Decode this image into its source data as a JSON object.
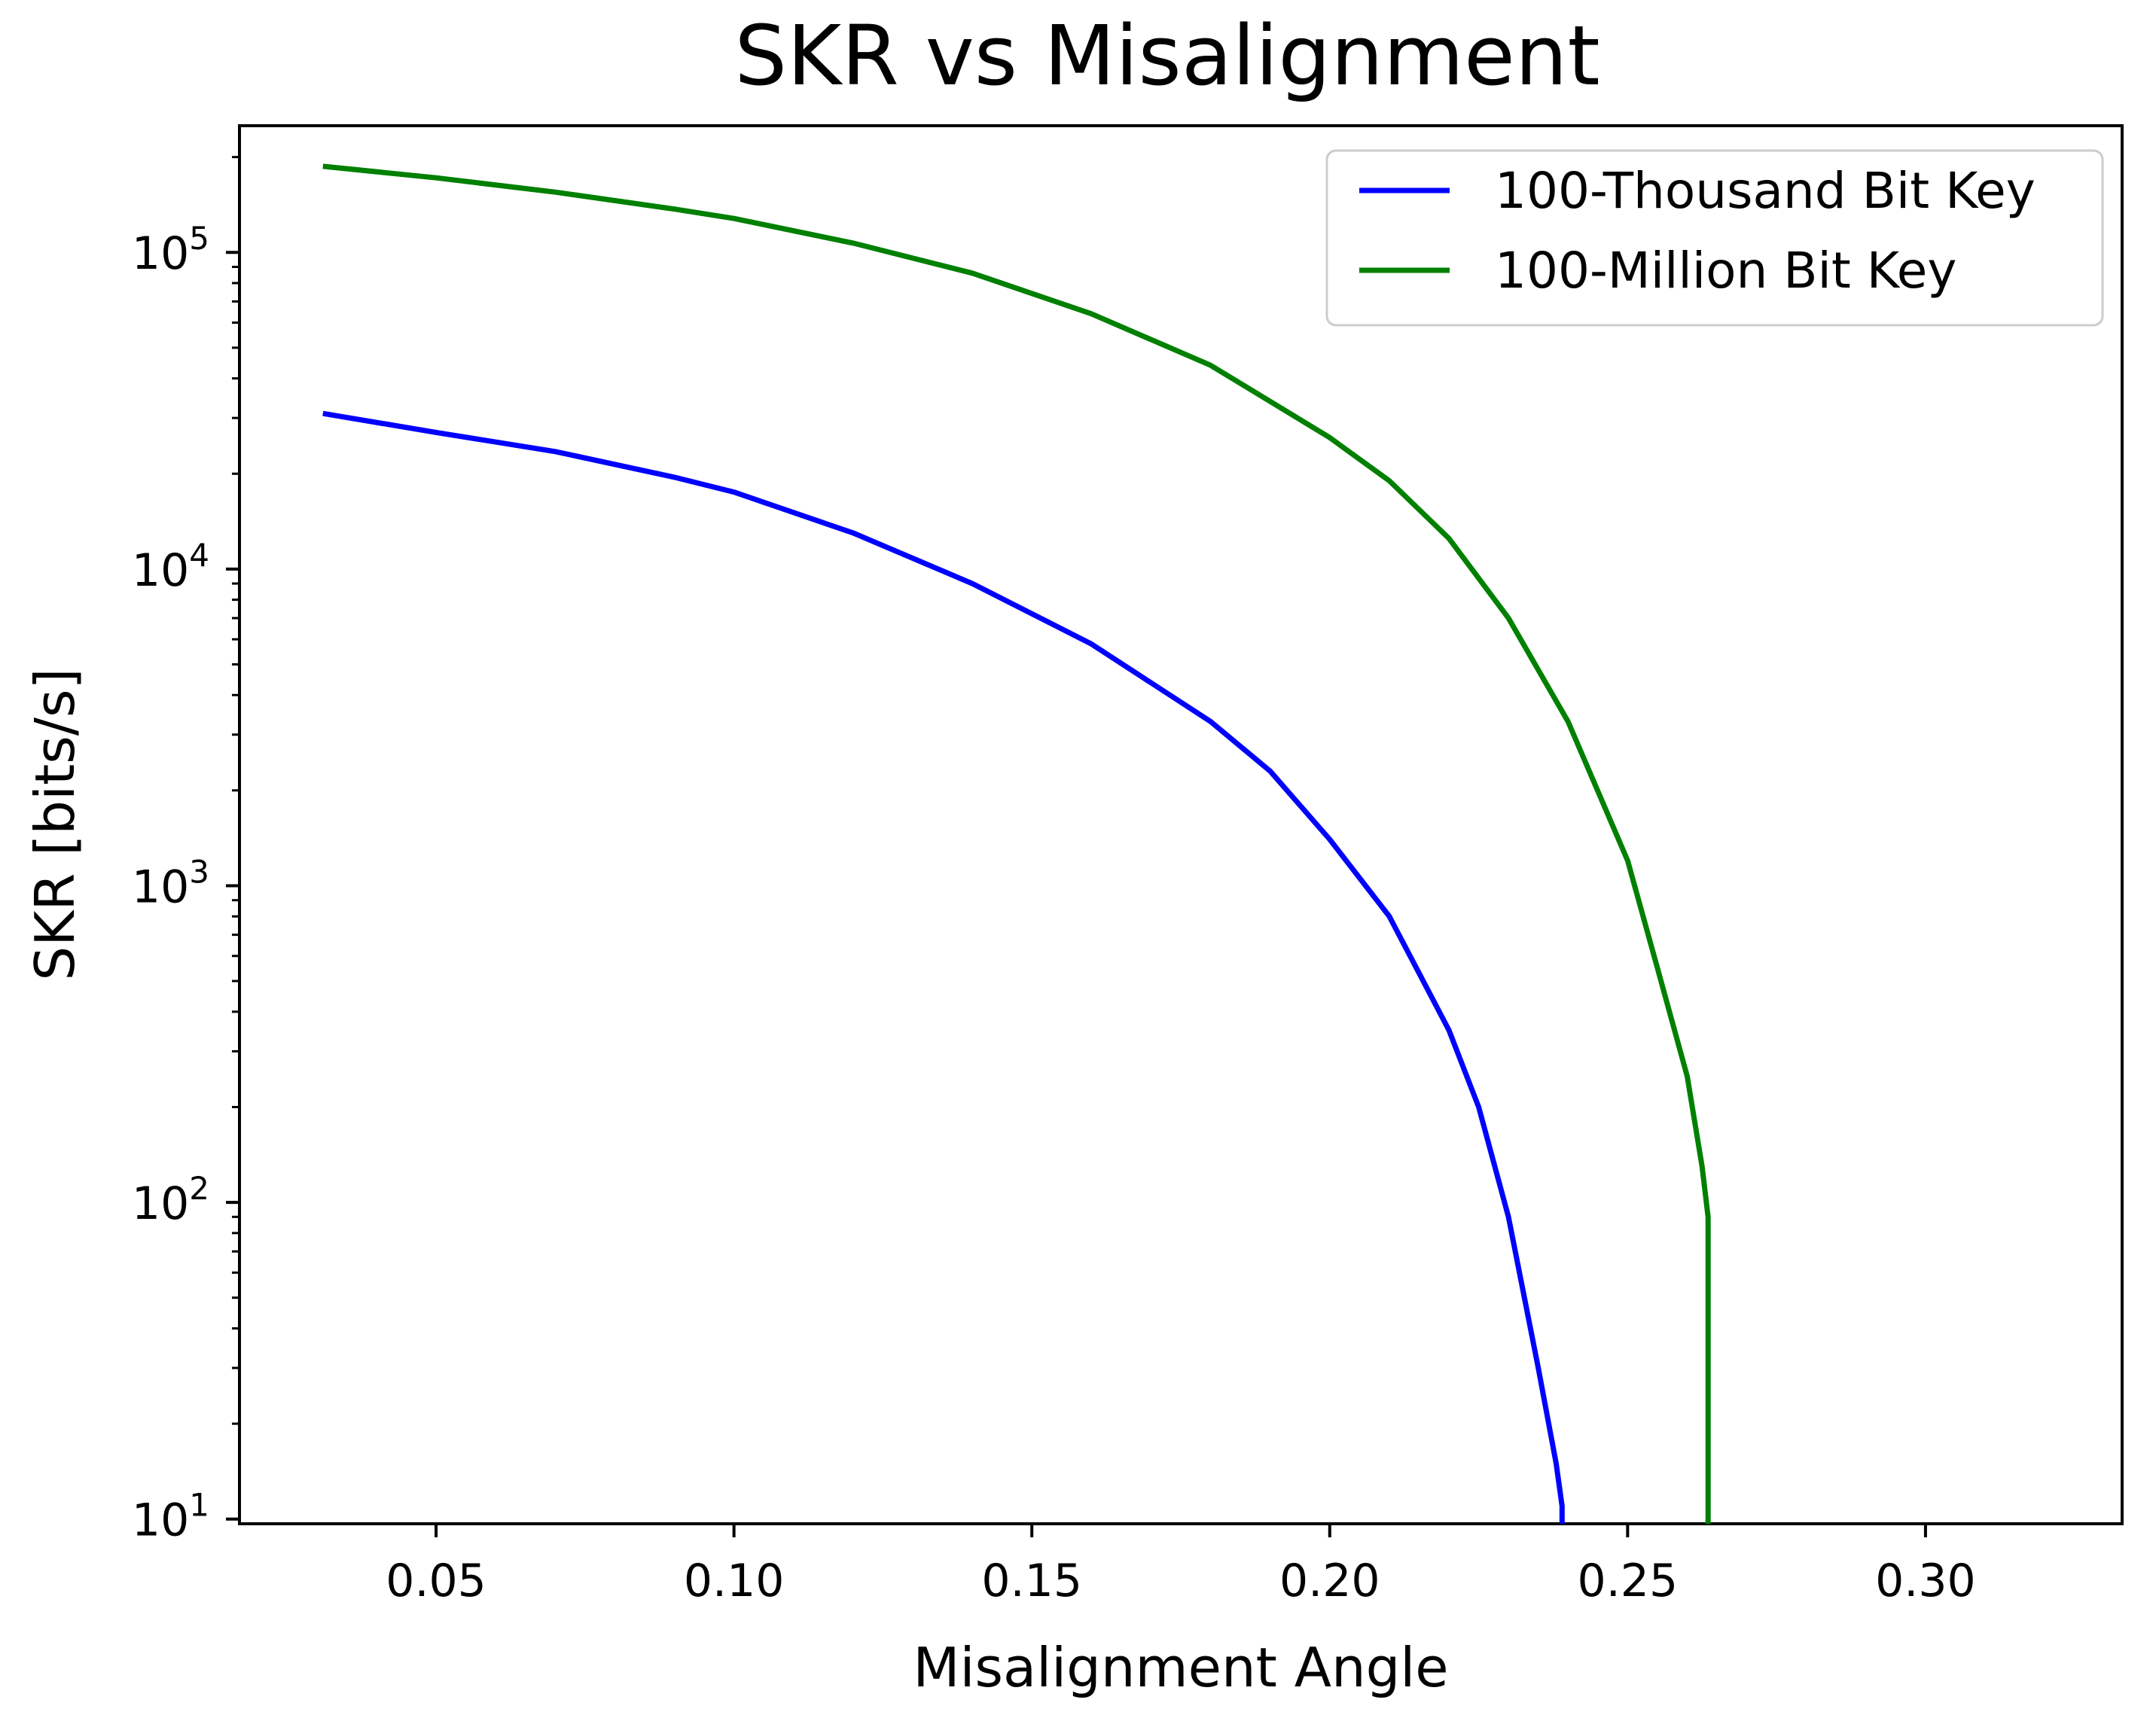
{
  "chart_data": {
    "type": "line",
    "title": "SKR vs Misalignment",
    "xlabel": "Misalignment Angle",
    "ylabel": "SKR [bits/s]",
    "xlim": [
      0.017,
      0.333
    ],
    "ylim_log10": [
      0.985,
      5.4
    ],
    "yscale": "log",
    "grid": false,
    "legend_position": "upper right",
    "x_ticks": [
      {
        "value": 0.05,
        "label": "0.05"
      },
      {
        "value": 0.1,
        "label": "0.10"
      },
      {
        "value": 0.15,
        "label": "0.15"
      },
      {
        "value": 0.2,
        "label": "0.20"
      },
      {
        "value": 0.25,
        "label": "0.25"
      },
      {
        "value": 0.3,
        "label": "0.30"
      }
    ],
    "y_ticks": [
      {
        "exp": 1,
        "base": "10",
        "sup": "1"
      },
      {
        "exp": 2,
        "base": "10",
        "sup": "2"
      },
      {
        "exp": 3,
        "base": "10",
        "sup": "3"
      },
      {
        "exp": 4,
        "base": "10",
        "sup": "4"
      },
      {
        "exp": 5,
        "base": "10",
        "sup": "5"
      }
    ],
    "series": [
      {
        "name": "100-Thousand Bit Key",
        "color": "#0000ff",
        "points": [
          [
            0.031,
            31000
          ],
          [
            0.05,
            27000
          ],
          [
            0.07,
            23500
          ],
          [
            0.09,
            19500
          ],
          [
            0.1,
            17500
          ],
          [
            0.12,
            13000
          ],
          [
            0.14,
            9000
          ],
          [
            0.16,
            5800
          ],
          [
            0.18,
            3300
          ],
          [
            0.19,
            2300
          ],
          [
            0.2,
            1400
          ],
          [
            0.21,
            800
          ],
          [
            0.22,
            350
          ],
          [
            0.225,
            200
          ],
          [
            0.23,
            90
          ],
          [
            0.235,
            30
          ],
          [
            0.238,
            15
          ],
          [
            0.239,
            11
          ],
          [
            0.239,
            9
          ]
        ]
      },
      {
        "name": "100-Million Bit Key",
        "color": "#008000",
        "points": [
          [
            0.031,
            187000
          ],
          [
            0.05,
            172000
          ],
          [
            0.07,
            155000
          ],
          [
            0.09,
            137000
          ],
          [
            0.1,
            128000
          ],
          [
            0.12,
            107000
          ],
          [
            0.14,
            86000
          ],
          [
            0.16,
            64000
          ],
          [
            0.18,
            44000
          ],
          [
            0.2,
            26000
          ],
          [
            0.21,
            19000
          ],
          [
            0.22,
            12500
          ],
          [
            0.23,
            7000
          ],
          [
            0.24,
            3300
          ],
          [
            0.25,
            1200
          ],
          [
            0.255,
            550
          ],
          [
            0.26,
            250
          ],
          [
            0.2625,
            130
          ],
          [
            0.2635,
            90
          ],
          [
            0.2635,
            10
          ],
          [
            0.2635,
            9
          ]
        ]
      }
    ]
  }
}
